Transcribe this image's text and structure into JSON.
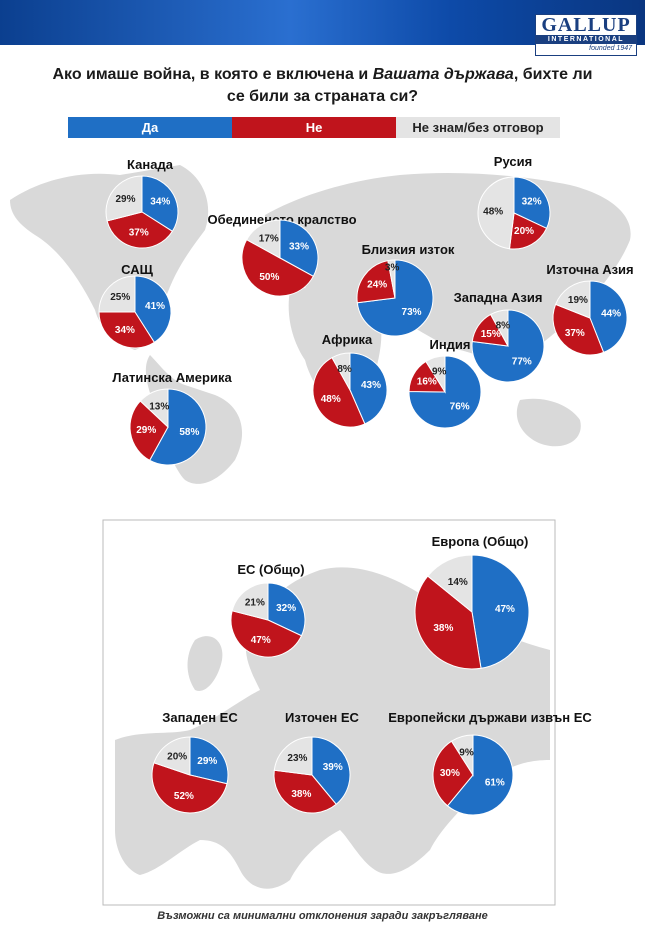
{
  "header": {
    "title_parts": [
      "Ако имаше война, в която е включена и ",
      "Вашата държава",
      ", бихте ли се били за страната си?"
    ],
    "logo": {
      "name": "GALLUP",
      "sub": "INTERNATIONAL",
      "founded": "founded 1947"
    }
  },
  "legend": {
    "labels": [
      "Да",
      "Не",
      "Не знам/без отговор"
    ],
    "colors": [
      "#1f6fc5",
      "#c0141c",
      "#e4e4e4"
    ]
  },
  "chart_data": [
    {
      "type": "pie",
      "title": "Канада",
      "values": [
        34,
        37,
        29
      ],
      "value_labels": [
        "34%",
        "37%",
        "29%"
      ]
    },
    {
      "type": "pie",
      "title": "Обединеното кралство",
      "values": [
        33,
        50,
        17
      ],
      "value_labels": [
        "33%",
        "50%",
        "17%"
      ]
    },
    {
      "type": "pie",
      "title": "Русия",
      "values": [
        32,
        20,
        48
      ],
      "value_labels": [
        "32%",
        "20%",
        "48%"
      ]
    },
    {
      "type": "pie",
      "title": "Близкия изток",
      "values": [
        73,
        24,
        3
      ],
      "value_labels": [
        "73%",
        "24%",
        "3%"
      ]
    },
    {
      "type": "pie",
      "title": "САЩ",
      "values": [
        41,
        34,
        25
      ],
      "value_labels": [
        "41%",
        "34%",
        "25%"
      ]
    },
    {
      "type": "pie",
      "title": "Западна Азия",
      "values": [
        77,
        15,
        8
      ],
      "value_labels": [
        "77%",
        "15%",
        "8%"
      ]
    },
    {
      "type": "pie",
      "title": "Източна Азия",
      "values": [
        44,
        37,
        19
      ],
      "value_labels": [
        "44%",
        "37%",
        "19%"
      ]
    },
    {
      "type": "pie",
      "title": "Африка",
      "values": [
        43,
        48,
        8
      ],
      "value_labels": [
        "43%",
        "48%",
        "8%"
      ]
    },
    {
      "type": "pie",
      "title": "Индия",
      "values": [
        76,
        16,
        9
      ],
      "value_labels": [
        "76%",
        "16%",
        "9%"
      ]
    },
    {
      "type": "pie",
      "title": "Латинска Америка",
      "values": [
        58,
        29,
        13
      ],
      "value_labels": [
        "58%",
        "29%",
        "13%"
      ]
    },
    {
      "type": "pie",
      "title": "Европа (Общо)",
      "values": [
        47,
        38,
        14
      ],
      "value_labels": [
        "47%",
        "38%",
        "14%"
      ]
    },
    {
      "type": "pie",
      "title": "ЕС (Общо)",
      "values": [
        32,
        47,
        21
      ],
      "value_labels": [
        "32%",
        "47%",
        "21%"
      ]
    },
    {
      "type": "pie",
      "title": "Западен ЕС",
      "values": [
        29,
        52,
        20
      ],
      "value_labels": [
        "29%",
        "52%",
        "20%"
      ]
    },
    {
      "type": "pie",
      "title": "Източен ЕС",
      "values": [
        39,
        38,
        23
      ],
      "value_labels": [
        "39%",
        "38%",
        "23%"
      ]
    },
    {
      "type": "pie",
      "title": "Европейски държави извън ЕС",
      "values": [
        61,
        30,
        9
      ],
      "value_labels": [
        "61%",
        "30%",
        "9%"
      ]
    }
  ],
  "footnote": "Възможни са минимални отклонения заради закръгляване"
}
